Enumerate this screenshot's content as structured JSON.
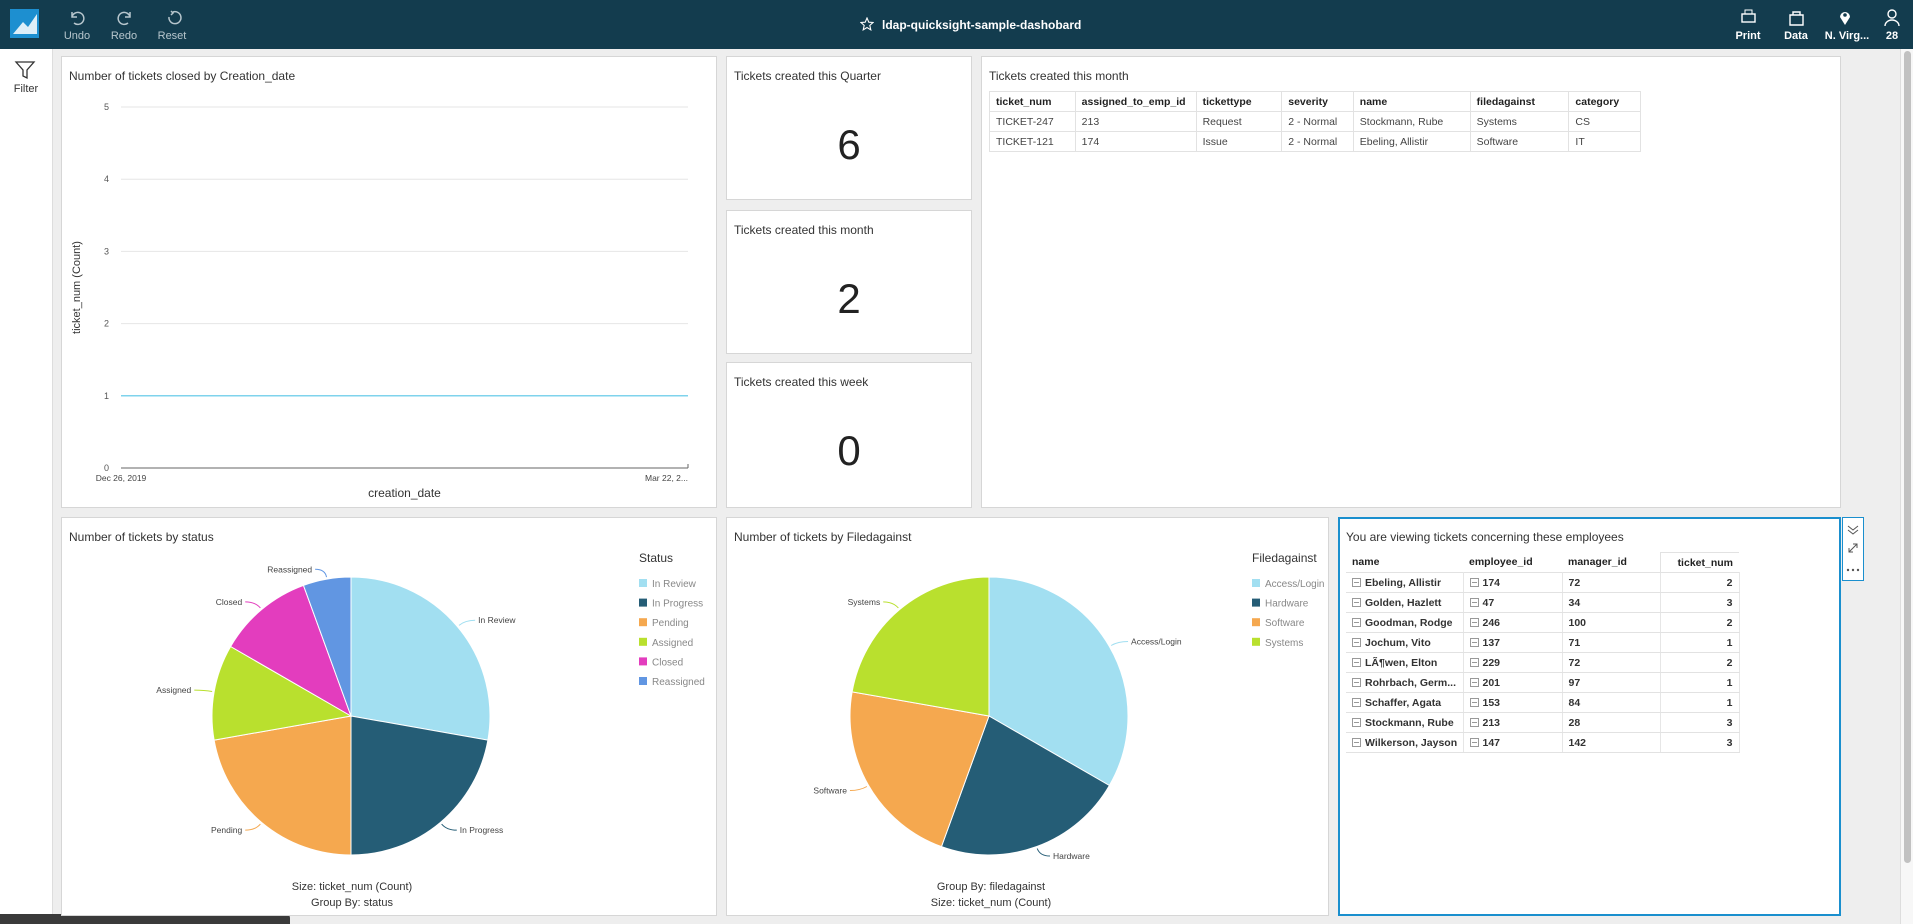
{
  "toolbar": {
    "undo": "Undo",
    "redo": "Redo",
    "reset": "Reset",
    "title": "ldap-quicksight-sample-dashobard",
    "print": "Print",
    "data": "Data",
    "region": "N. Virg...",
    "user": "28"
  },
  "sidebar": {
    "filter": "Filter"
  },
  "chart_data": [
    {
      "type": "line",
      "title": "Number of tickets closed by Creation_date",
      "x_label": "creation_date",
      "y_label": "ticket_num (Count)",
      "categories": [
        "Dec 26, 2019",
        "Mar 22, 2..."
      ],
      "values": [
        1,
        1
      ],
      "color": "#7fd3ec",
      "ylim": [
        0,
        5
      ],
      "yticks": [
        0,
        1,
        2,
        3,
        4,
        5
      ],
      "grid": true
    },
    {
      "type": "pie",
      "title": "Number of tickets by status",
      "legend_title": "Status",
      "categories": [
        "In Review",
        "In Progress",
        "Pending",
        "Assigned",
        "Closed",
        "Reassigned"
      ],
      "values": [
        5,
        4,
        4,
        2,
        2,
        1
      ],
      "colors": [
        "#a2dff1",
        "#255d76",
        "#f5a84f",
        "#b9e02e",
        "#e33dbe",
        "#6196e2"
      ],
      "footer": [
        "Size: ticket_num (Count)",
        "Group By: status"
      ]
    },
    {
      "type": "pie",
      "title": "Number of tickets by Filedagainst",
      "legend_title": "Filedagainst",
      "categories": [
        "Access/Login",
        "Hardware",
        "Software",
        "Systems"
      ],
      "values": [
        6,
        4,
        4,
        4
      ],
      "colors": [
        "#a2dff1",
        "#255d76",
        "#f5a84f",
        "#b9e02e"
      ],
      "footer": [
        "Group By: filedagainst",
        "Size: ticket_num (Count)"
      ]
    }
  ],
  "kpis": [
    {
      "title": "Tickets created this Quarter",
      "value": 6
    },
    {
      "title": "Tickets created this month",
      "value": 2
    },
    {
      "title": "Tickets created this week",
      "value": 0
    }
  ],
  "month_table": {
    "title": "Tickets created this month",
    "columns": [
      "ticket_num",
      "assigned_to_emp_id",
      "tickettype",
      "severity",
      "name",
      "filedagainst",
      "category"
    ],
    "rows": [
      [
        "TICKET-247",
        213,
        "Request",
        "2 - Normal",
        "Stockmann, Rube",
        "Systems",
        "CS"
      ],
      [
        "TICKET-121",
        174,
        "Issue",
        "2 - Normal",
        "Ebeling, Allistir",
        "Software",
        "IT"
      ]
    ]
  },
  "employee_table": {
    "title": "You are viewing tickets concerning these employees",
    "columns": [
      "name",
      "employee_id",
      "manager_id",
      "ticket_num"
    ],
    "rows": [
      [
        "Ebeling, Allistir",
        174,
        72,
        2
      ],
      [
        "Golden, Hazlett",
        47,
        34,
        3
      ],
      [
        "Goodman, Rodge",
        246,
        100,
        2
      ],
      [
        "Jochum, Vito",
        137,
        71,
        1
      ],
      [
        "LÃ¶wen, Elton",
        229,
        72,
        2
      ],
      [
        "Rohrbach, Germ...",
        201,
        97,
        1
      ],
      [
        "Schaffer, Agata",
        153,
        84,
        1
      ],
      [
        "Stockmann, Rube",
        213,
        28,
        3
      ],
      [
        "Wilkerson, Jayson",
        147,
        142,
        3
      ]
    ]
  }
}
